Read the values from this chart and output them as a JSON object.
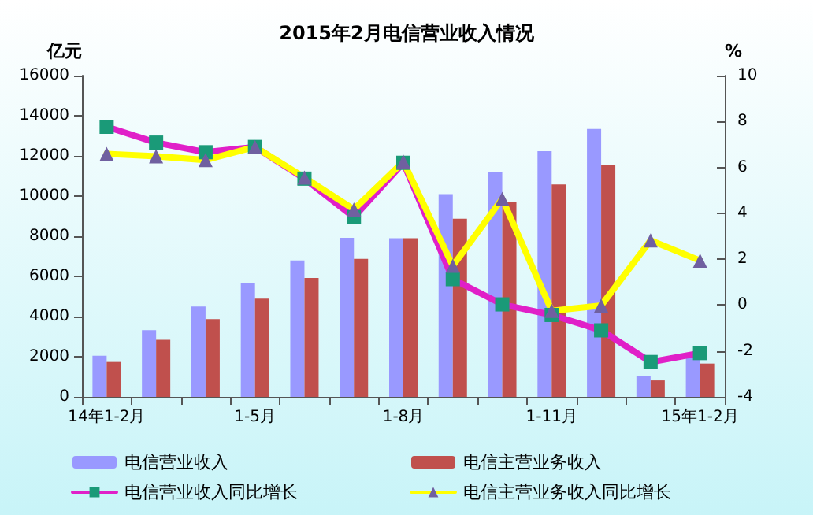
{
  "chart_data": {
    "type": "bar",
    "title": "2015年2月电信营业收入情况",
    "ylabel": "亿元",
    "y2label": "%",
    "categories": [
      "14年1-2月",
      null,
      null,
      "1-5月",
      null,
      null,
      "1-8月",
      null,
      null,
      "1-11月",
      null,
      null,
      "15年1-2月"
    ],
    "series": [
      {
        "name": "电信营业收入",
        "color": "#9999ff",
        "values": [
          2050,
          3320,
          4500,
          5680,
          6790,
          7920,
          7900,
          10100,
          11210,
          12240,
          13340,
          1050,
          1970
        ]
      },
      {
        "name": "电信主营业务收入",
        "color": "#c0504d",
        "values": [
          1740,
          2840,
          3870,
          4890,
          5920,
          6870,
          7900,
          8870,
          9710,
          10580,
          11530,
          820,
          1660
        ]
      },
      {
        "name": "电信营业收入同比增长",
        "type": "line",
        "axis": "y2",
        "marker": "square",
        "color": "#e020c8",
        "colors": [
          "#1a9a78",
          "#1a9a78",
          "#1a9a78",
          "#1a9a78",
          "#1a9a78",
          "#1a9a78",
          "#1a9a78",
          "#1a9a78",
          "#1a9a78",
          "#1a9a78",
          "#1a9a78",
          "#1a9a78",
          "#1a9a78"
        ],
        "values": [
          7.77,
          7.08,
          6.66,
          6.89,
          5.51,
          3.83,
          6.2,
          1.13,
          0.03,
          -0.43,
          -1.1,
          -2.48,
          -2.09
        ]
      },
      {
        "name": "电信主营业务收入同比增长",
        "type": "line",
        "axis": "y2",
        "marker": "triangle",
        "color": "#ffff00",
        "colors": [
          "#7060a0",
          "#7060a0",
          "#7060a0",
          "#7060a0",
          "#7060a0",
          "#7060a0",
          "#7060a0",
          "#7060a0",
          "#7060a0",
          "#7060a0",
          "#7060a0",
          "#7060a0",
          "#7060a0"
        ],
        "values": [
          6.59,
          6.48,
          6.32,
          6.89,
          5.56,
          4.17,
          6.25,
          1.71,
          4.63,
          -0.25,
          -0.02,
          2.82,
          1.94
        ]
      }
    ],
    "ylim": [
      0,
      16000
    ],
    "yticks": [
      0,
      2000,
      4000,
      6000,
      8000,
      10000,
      12000,
      14000,
      16000
    ],
    "y2lim": [
      -4,
      10
    ],
    "y2ticks": [
      -4,
      -2,
      0,
      2,
      4,
      6,
      8,
      10
    ],
    "grid": false,
    "legend": "bottom",
    "line_style": "solid"
  }
}
